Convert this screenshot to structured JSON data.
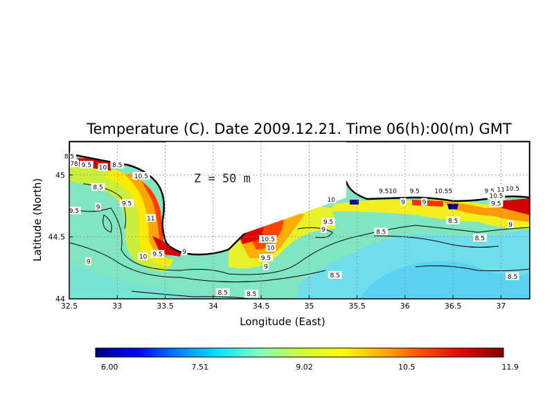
{
  "chart_data": {
    "type": "heatmap",
    "title": "Temperature (C). Date 2009.12.21. Time 06(h):00(m) GMT",
    "xlabel": "Longitude (East)",
    "ylabel": "Latitude (North)",
    "xlim": [
      32.5,
      37.3
    ],
    "ylim": [
      44.0,
      45.27
    ],
    "x_ticks": [
      32.5,
      33,
      33.5,
      34,
      34.5,
      35,
      35.5,
      36,
      36.5,
      37
    ],
    "x_tick_labels": [
      "32.5",
      "33",
      "33.5",
      "34",
      "34.5",
      "35",
      "35.5",
      "36",
      "36.5",
      "37"
    ],
    "y_ticks": [
      44,
      44.5,
      45
    ],
    "y_tick_labels": [
      "44",
      "44.5",
      "45"
    ],
    "grid": true,
    "depth_annotation": "Z = 50 m",
    "colorbar": {
      "min": 6.0,
      "max": 11.9,
      "tick_values": [
        6.0,
        7.51,
        9.02,
        10.5,
        11.9
      ],
      "tick_labels": [
        "6.00",
        "7.51",
        "9.02",
        "10.5",
        "11.9"
      ],
      "colors": [
        "#00007f",
        "#0000ff",
        "#007fff",
        "#00e5ff",
        "#7fffbf",
        "#c8ff37",
        "#ffff00",
        "#ffb000",
        "#ff5000",
        "#e60000",
        "#7f0000"
      ]
    },
    "contour_labels": [
      {
        "text": "8.5",
        "x": 32.5,
        "y": 45.15
      },
      {
        "text": "78",
        "x": 32.55,
        "y": 45.09
      },
      {
        "text": "9.5",
        "x": 32.68,
        "y": 45.08
      },
      {
        "text": "10",
        "x": 32.85,
        "y": 45.06
      },
      {
        "text": "8.5",
        "x": 33.0,
        "y": 45.08
      },
      {
        "text": "10.5",
        "x": 33.25,
        "y": 44.99
      },
      {
        "text": "8.5",
        "x": 32.8,
        "y": 44.9
      },
      {
        "text": "9.5",
        "x": 33.1,
        "y": 44.77
      },
      {
        "text": "9",
        "x": 32.8,
        "y": 44.74
      },
      {
        "text": "9.5",
        "x": 32.55,
        "y": 44.71
      },
      {
        "text": "11",
        "x": 33.35,
        "y": 44.65
      },
      {
        "text": "9",
        "x": 32.7,
        "y": 44.3
      },
      {
        "text": "10",
        "x": 33.27,
        "y": 44.34
      },
      {
        "text": "9.5",
        "x": 33.42,
        "y": 44.36
      },
      {
        "text": "9",
        "x": 33.7,
        "y": 44.38
      },
      {
        "text": "10.5",
        "x": 34.57,
        "y": 44.48
      },
      {
        "text": "10",
        "x": 34.6,
        "y": 44.41
      },
      {
        "text": "9.5",
        "x": 34.55,
        "y": 44.33
      },
      {
        "text": "9",
        "x": 34.55,
        "y": 44.26
      },
      {
        "text": "9.5",
        "x": 35.2,
        "y": 44.62
      },
      {
        "text": "10",
        "x": 35.23,
        "y": 44.8
      },
      {
        "text": "9",
        "x": 35.15,
        "y": 44.56
      },
      {
        "text": "8.5",
        "x": 34.1,
        "y": 44.05
      },
      {
        "text": "8.5",
        "x": 34.4,
        "y": 44.04
      },
      {
        "text": "8.5",
        "x": 35.27,
        "y": 44.19
      },
      {
        "text": "8.5",
        "x": 35.75,
        "y": 44.54
      },
      {
        "text": "9.510",
        "x": 35.82,
        "y": 44.87
      },
      {
        "text": "9.5",
        "x": 36.1,
        "y": 44.87
      },
      {
        "text": "9",
        "x": 35.98,
        "y": 44.78
      },
      {
        "text": "9",
        "x": 36.2,
        "y": 44.78
      },
      {
        "text": "10.55",
        "x": 36.4,
        "y": 44.87
      },
      {
        "text": "8.5",
        "x": 36.5,
        "y": 44.63
      },
      {
        "text": "9.5",
        "x": 36.88,
        "y": 44.87
      },
      {
        "text": "11",
        "x": 37.0,
        "y": 44.88
      },
      {
        "text": "10.5",
        "x": 37.12,
        "y": 44.89
      },
      {
        "text": "10.5",
        "x": 36.95,
        "y": 44.83
      },
      {
        "text": "9.5",
        "x": 36.95,
        "y": 44.77
      },
      {
        "text": "9",
        "x": 37.1,
        "y": 44.6
      },
      {
        "text": "8.5",
        "x": 36.78,
        "y": 44.49
      },
      {
        "text": "8.5",
        "x": 37.12,
        "y": 44.18
      }
    ]
  }
}
